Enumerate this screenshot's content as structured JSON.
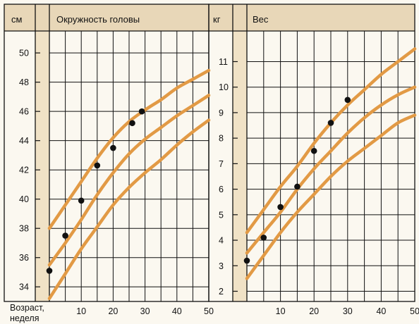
{
  "colors": {
    "background": "#fbf8f0",
    "header_band": "#e8d7b8",
    "side_band": "#f0e2c6",
    "grid": "#111111",
    "curve": "#e29a45",
    "dot": "#111111"
  },
  "labels": {
    "unit_cm": "см",
    "unit_kg": "кг",
    "x_caption_line1": "Возраст,",
    "x_caption_line2": "неделя"
  },
  "chart_data": [
    {
      "type": "line",
      "title": "Окружность головы",
      "ylabel": "см",
      "xlabel": "Возраст, неделя",
      "xlim": [
        0,
        50
      ],
      "ylim": [
        33,
        51.5
      ],
      "x_ticks": [
        10,
        20,
        30,
        40,
        50
      ],
      "y_ticks": [
        34,
        36,
        38,
        40,
        42,
        44,
        46,
        48,
        50
      ],
      "grid": true,
      "series": [
        {
          "role": "curve",
          "points": [
            [
              0,
              38.0
            ],
            [
              5,
              39.6
            ],
            [
              10,
              41.2
            ],
            [
              15,
              42.8
            ],
            [
              20,
              44.2
            ],
            [
              25,
              45.3
            ],
            [
              30,
              46.1
            ],
            [
              35,
              46.8
            ],
            [
              40,
              47.6
            ],
            [
              45,
              48.2
            ],
            [
              50,
              48.8
            ]
          ]
        },
        {
          "role": "curve",
          "points": [
            [
              0,
              35.5
            ],
            [
              5,
              37.0
            ],
            [
              10,
              38.6
            ],
            [
              15,
              40.3
            ],
            [
              20,
              41.8
            ],
            [
              25,
              43.1
            ],
            [
              30,
              44.1
            ],
            [
              35,
              44.9
            ],
            [
              40,
              45.7
            ],
            [
              45,
              46.4
            ],
            [
              50,
              47.1
            ]
          ]
        },
        {
          "role": "curve",
          "points": [
            [
              0,
              33.2
            ],
            [
              5,
              34.9
            ],
            [
              10,
              36.6
            ],
            [
              15,
              38.1
            ],
            [
              20,
              39.6
            ],
            [
              25,
              40.8
            ],
            [
              30,
              41.8
            ],
            [
              35,
              42.7
            ],
            [
              40,
              43.7
            ],
            [
              45,
              44.6
            ],
            [
              50,
              45.4
            ]
          ]
        },
        {
          "role": "measurements",
          "points": [
            [
              0,
              35.1
            ],
            [
              5,
              37.5
            ],
            [
              10,
              39.9
            ],
            [
              15,
              42.3
            ],
            [
              20,
              43.5
            ],
            [
              26,
              45.2
            ],
            [
              29,
              46.0
            ]
          ]
        }
      ]
    },
    {
      "type": "line",
      "title": "Вес",
      "ylabel": "кг",
      "xlabel": "Возраст, неделя",
      "xlim": [
        0,
        50
      ],
      "ylim": [
        1.6,
        12.2
      ],
      "x_ticks": [
        10,
        20,
        30,
        40,
        50
      ],
      "y_ticks": [
        2,
        3,
        4,
        5,
        6,
        7,
        8,
        9,
        10,
        11
      ],
      "grid": true,
      "series": [
        {
          "role": "curve",
          "points": [
            [
              0,
              4.3
            ],
            [
              5,
              5.2
            ],
            [
              10,
              6.1
            ],
            [
              15,
              6.9
            ],
            [
              20,
              7.8
            ],
            [
              25,
              8.6
            ],
            [
              30,
              9.3
            ],
            [
              35,
              9.9
            ],
            [
              40,
              10.5
            ],
            [
              45,
              11.0
            ],
            [
              50,
              11.5
            ]
          ]
        },
        {
          "role": "curve",
          "points": [
            [
              0,
              3.5
            ],
            [
              5,
              4.3
            ],
            [
              10,
              5.1
            ],
            [
              15,
              6.0
            ],
            [
              20,
              6.8
            ],
            [
              25,
              7.5
            ],
            [
              30,
              8.2
            ],
            [
              35,
              8.8
            ],
            [
              40,
              9.3
            ],
            [
              45,
              9.7
            ],
            [
              50,
              10.0
            ]
          ]
        },
        {
          "role": "curve",
          "points": [
            [
              0,
              2.5
            ],
            [
              5,
              3.4
            ],
            [
              10,
              4.3
            ],
            [
              15,
              5.1
            ],
            [
              20,
              5.8
            ],
            [
              25,
              6.5
            ],
            [
              30,
              7.1
            ],
            [
              35,
              7.6
            ],
            [
              40,
              8.1
            ],
            [
              45,
              8.6
            ],
            [
              50,
              8.9
            ]
          ]
        },
        {
          "role": "measurements",
          "points": [
            [
              0,
              3.2
            ],
            [
              5,
              4.1
            ],
            [
              10,
              5.3
            ],
            [
              15,
              6.1
            ],
            [
              20,
              7.5
            ],
            [
              25,
              8.6
            ],
            [
              30,
              9.5
            ]
          ]
        }
      ]
    }
  ]
}
